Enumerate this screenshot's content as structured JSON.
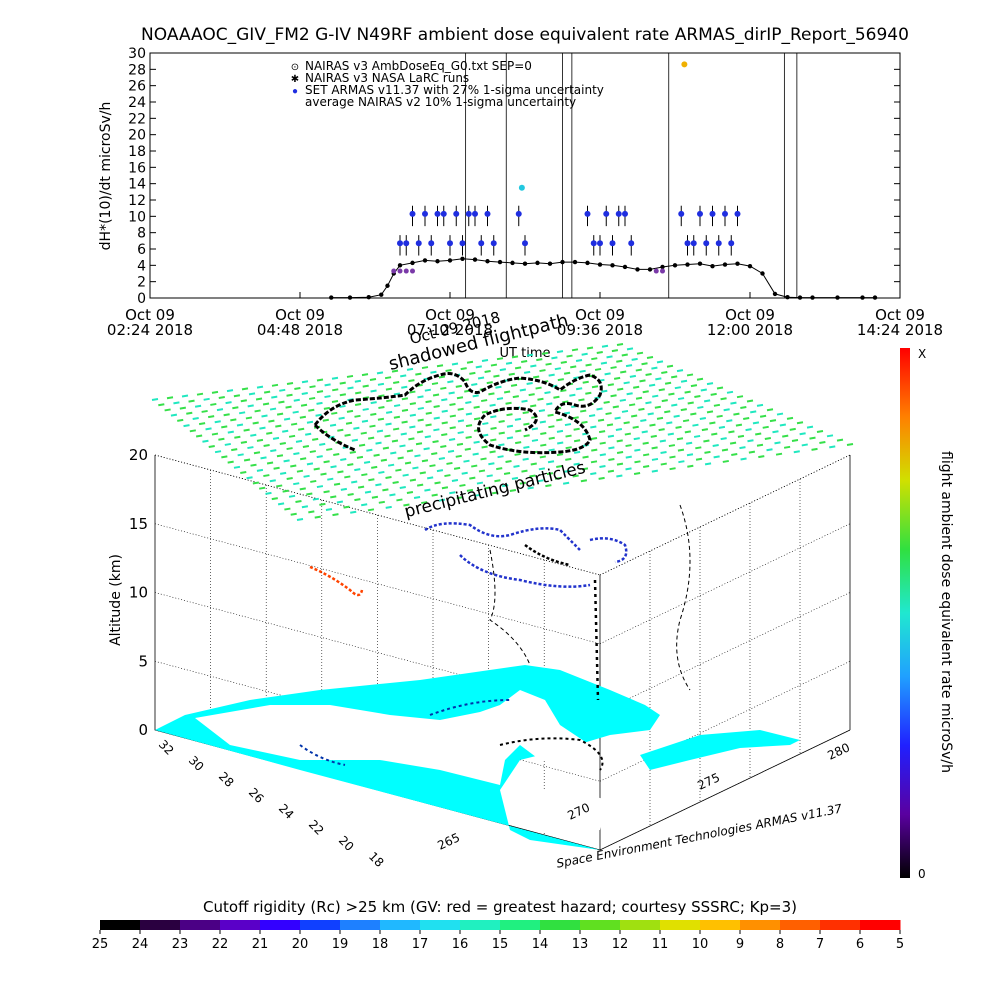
{
  "chart_data": [
    {
      "type": "scatter",
      "title": "NOAAAOC_GIV_FM2 G-IV    N49RF   ambient dose equivalent rate ARMAS_dirIP_Report_56940",
      "ylabel": "dH*(10)/dt microSv/h",
      "xlabel": "UT time",
      "ylim": [
        0,
        30
      ],
      "yticks": [
        "0",
        "2",
        "4",
        "6",
        "8",
        "10",
        "12",
        "14",
        "16",
        "18",
        "20",
        "22",
        "24",
        "26",
        "28",
        "30"
      ],
      "xticks": [
        {
          "line1": "Oct 09",
          "line2": "02:24 2018"
        },
        {
          "line1": "Oct 09",
          "line2": "04:48 2018"
        },
        {
          "line1": "Oct 09",
          "line2": "07:12 2018"
        },
        {
          "line1": "Oct 09",
          "line2": "09:36 2018"
        },
        {
          "line1": "Oct 09",
          "line2": "12:00 2018"
        },
        {
          "line1": "Oct 09",
          "line2": "14:24 2018"
        }
      ],
      "xrange_hours": [
        2.4,
        14.4
      ],
      "legend": [
        {
          "symbol": "⊙",
          "text": "NAIRAS v3 AmbDoseEq_G0.txt SEP=0",
          "color": "#000000"
        },
        {
          "symbol": "✱",
          "text": "NAIRAS v3 NASA LaRC runs",
          "color": "#000000"
        },
        {
          "symbol": "●",
          "text": "SET ARMAS v11.37 with 27% 1-sigma uncertainty",
          "color": "#1f2ee0"
        },
        {
          "symbol": "",
          "text": "average NAIRAS v2 10% 1-sigma uncertainty",
          "color": "#000000"
        }
      ],
      "legend_position": "top-left",
      "series": [
        {
          "name": "NAIRAS v3 AmbDoseEq_G0.txt SEP=0",
          "color": "#000000",
          "x": [
            5.3,
            5.6,
            5.9,
            6.1,
            6.2,
            6.3,
            6.4,
            6.6,
            6.8,
            7.0,
            7.2,
            7.4,
            7.6,
            7.8,
            8.0,
            8.2,
            8.4,
            8.6,
            8.8,
            9.0,
            9.2,
            9.4,
            9.6,
            9.8,
            10.0,
            10.2,
            10.4,
            10.6,
            10.8,
            11.0,
            11.2,
            11.4,
            11.6,
            11.8,
            12.0,
            12.2,
            12.4,
            12.6,
            12.8,
            13.0,
            13.4,
            13.8,
            14.0
          ],
          "y": [
            0.05,
            0.05,
            0.1,
            0.4,
            1.5,
            3.0,
            4.0,
            4.3,
            4.6,
            4.5,
            4.6,
            4.8,
            4.7,
            4.5,
            4.4,
            4.3,
            4.2,
            4.3,
            4.2,
            4.4,
            4.4,
            4.3,
            4.1,
            4.0,
            3.8,
            3.5,
            3.5,
            3.8,
            4.0,
            4.1,
            4.2,
            3.9,
            4.1,
            4.2,
            3.9,
            3.0,
            0.5,
            0.1,
            0.05,
            0.05,
            0.05,
            0.05,
            0.05
          ]
        },
        {
          "name": "SET ARMAS v11.37 with 27% 1-sigma uncertainty",
          "color": "#1f2ee0",
          "x": [
            6.4,
            6.5,
            6.6,
            6.7,
            6.8,
            6.9,
            7.0,
            7.1,
            7.2,
            7.3,
            7.4,
            7.5,
            7.6,
            7.7,
            7.8,
            7.9,
            8.3,
            8.4,
            9.4,
            9.5,
            9.6,
            9.7,
            9.8,
            9.9,
            10.0,
            10.1,
            10.9,
            11.0,
            11.1,
            11.2,
            11.3,
            11.4,
            11.5,
            11.6,
            11.7,
            11.8
          ],
          "y": [
            6.7,
            6.7,
            10.3,
            6.7,
            10.3,
            6.7,
            10.3,
            10.3,
            6.7,
            10.3,
            6.7,
            10.3,
            10.3,
            6.7,
            10.3,
            6.7,
            10.3,
            6.7,
            10.3,
            6.7,
            6.7,
            10.3,
            6.7,
            10.3,
            10.3,
            6.7,
            10.3,
            6.7,
            6.7,
            10.3,
            6.7,
            10.3,
            6.7,
            10.3,
            6.7,
            10.3
          ]
        },
        {
          "name": "average NAIRAS v2 10% 1-sigma uncertainty",
          "color": "#7a3aa8",
          "x": [
            6.3,
            6.4,
            6.5,
            6.6,
            10.5,
            10.6
          ],
          "y": [
            3.3,
            3.3,
            3.3,
            3.3,
            3.3,
            3.3
          ]
        }
      ],
      "vertical_lines_hours": [
        7.45,
        8.1,
        9.0,
        9.15,
        10.7,
        12.55,
        12.75
      ],
      "highlight_points": [
        {
          "x": 8.35,
          "y": 13.5,
          "color": "#22c8e0"
        },
        {
          "x": 10.95,
          "y": 28.6,
          "color": "#f0b000"
        }
      ]
    },
    {
      "type": "scatter",
      "title": "shadowed flightpath",
      "subtitle": "Oct 09 2018",
      "zlabel": "Altitude (km)",
      "zticks": [
        "0",
        "5",
        "10",
        "15",
        "20"
      ],
      "lat_ticks": [
        "32",
        "30",
        "28",
        "26",
        "24",
        "22",
        "20",
        "18"
      ],
      "lon_ticks": [
        "265",
        "270",
        "275",
        "280"
      ],
      "annotations": [
        "precipitating particles"
      ],
      "credit": "Space Environment Technologies ARMAS v11.37",
      "colorbar": {
        "label": "flight ambient dose equivalent rate microSv/h",
        "max_label": "X",
        "min_label": "0"
      }
    },
    {
      "type": "heatmap",
      "title": "Cutoff rigidity (Rc) >25 km (GV: red = greatest hazard; courtesy SSSRC; Kp=3)",
      "ticks": [
        "25",
        "24",
        "23",
        "22",
        "21",
        "20",
        "19",
        "18",
        "17",
        "16",
        "15",
        "14",
        "13",
        "12",
        "11",
        "10",
        "9",
        "8",
        "7",
        "6",
        "5"
      ],
      "colors": [
        "#000000",
        "#2a0040",
        "#4b0085",
        "#5a00c8",
        "#3300ff",
        "#1040ff",
        "#1e80ff",
        "#20b8ff",
        "#20e0f0",
        "#20f0c0",
        "#20f080",
        "#30e040",
        "#60e020",
        "#a0e010",
        "#e0e000",
        "#ffc000",
        "#ff9000",
        "#ff6000",
        "#ff3000",
        "#ff0000"
      ]
    }
  ],
  "colors": {
    "ocean": "#00ffff",
    "grid_green": "#2ee05a",
    "flightpath": "#000000",
    "armas_blue": "#1f2ee0"
  }
}
